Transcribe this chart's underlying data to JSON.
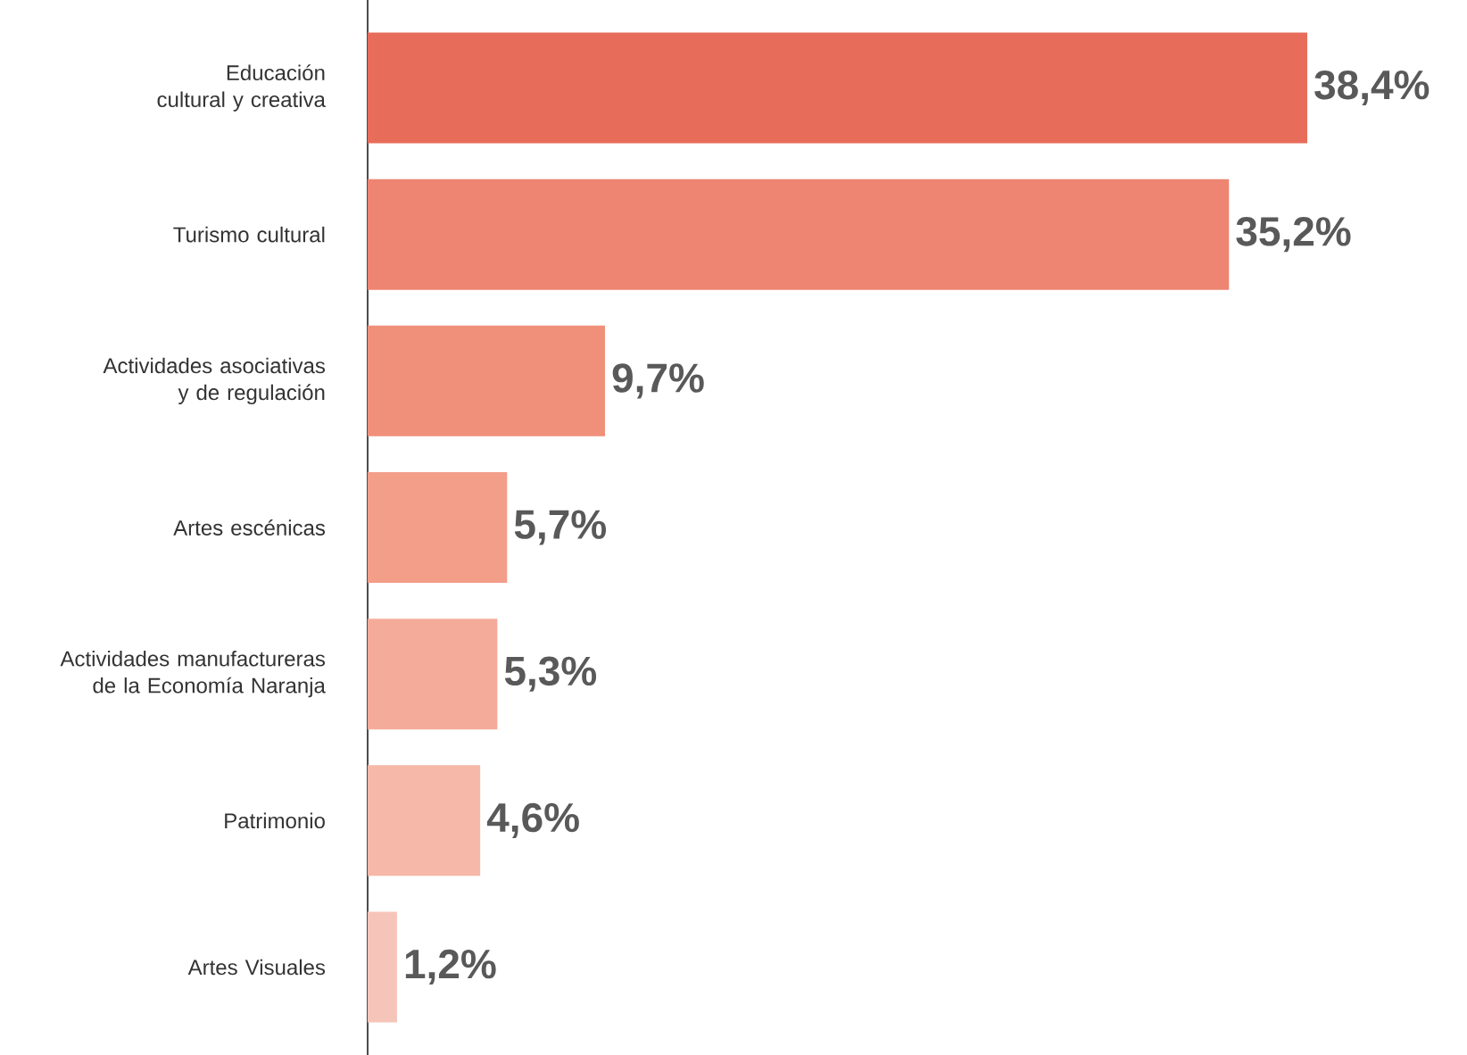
{
  "chart_data": {
    "type": "bar",
    "orientation": "horizontal",
    "categories": [
      "Educación cultural y creativa",
      "Turismo cultural",
      "Actividades asociativas y de regulación",
      "Artes escénicas",
      "Actividades manufactureras de la Economía Naranja",
      "Patrimonio",
      "Artes Visuales"
    ],
    "values": [
      38.4,
      35.2,
      9.7,
      5.7,
      5.3,
      4.6,
      1.2
    ],
    "value_labels": [
      "38,4%",
      "35,2%",
      "9,7%",
      "5,7%",
      "5,3%",
      "4,6%",
      "1,2%"
    ],
    "colors": [
      "#e76d5a",
      "#ee8472",
      "#f0907a",
      "#f29e89",
      "#f4ab99",
      "#f5b8a9",
      "#f6c5b9"
    ]
  }
}
